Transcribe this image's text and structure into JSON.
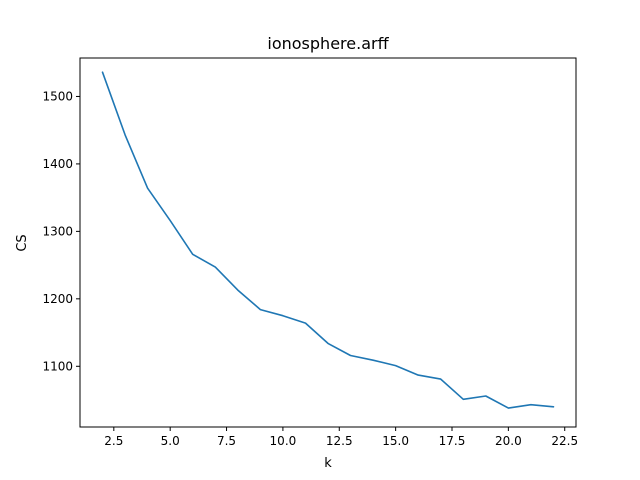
{
  "chart_data": {
    "type": "line",
    "title": "ionosphere.arff",
    "xlabel": "k",
    "ylabel": "CS",
    "xlim": [
      1.0,
      23.0
    ],
    "ylim": [
      1010,
      1557
    ],
    "x_ticks": [
      2.5,
      5.0,
      7.5,
      10.0,
      12.5,
      15.0,
      17.5,
      20.0,
      22.5
    ],
    "x_tick_labels": [
      "2.5",
      "5.0",
      "7.5",
      "10.0",
      "12.5",
      "15.0",
      "17.5",
      "20.0",
      "22.5"
    ],
    "y_ticks": [
      1100,
      1200,
      1300,
      1400,
      1500
    ],
    "y_tick_labels": [
      "1100",
      "1200",
      "1300",
      "1400",
      "1500"
    ],
    "grid": false,
    "series": [
      {
        "color": "#1f77b4",
        "x": [
          2,
          3,
          4,
          5,
          6,
          7,
          8,
          9,
          10,
          11,
          12,
          13,
          14,
          15,
          16,
          17,
          18,
          19,
          20,
          21,
          22
        ],
        "values": [
          1536,
          1443,
          1364,
          1316,
          1266,
          1247,
          1213,
          1184,
          1175,
          1164,
          1134,
          1116,
          1109,
          1101,
          1087,
          1081,
          1051,
          1056,
          1038,
          1043,
          1040
        ]
      }
    ]
  }
}
